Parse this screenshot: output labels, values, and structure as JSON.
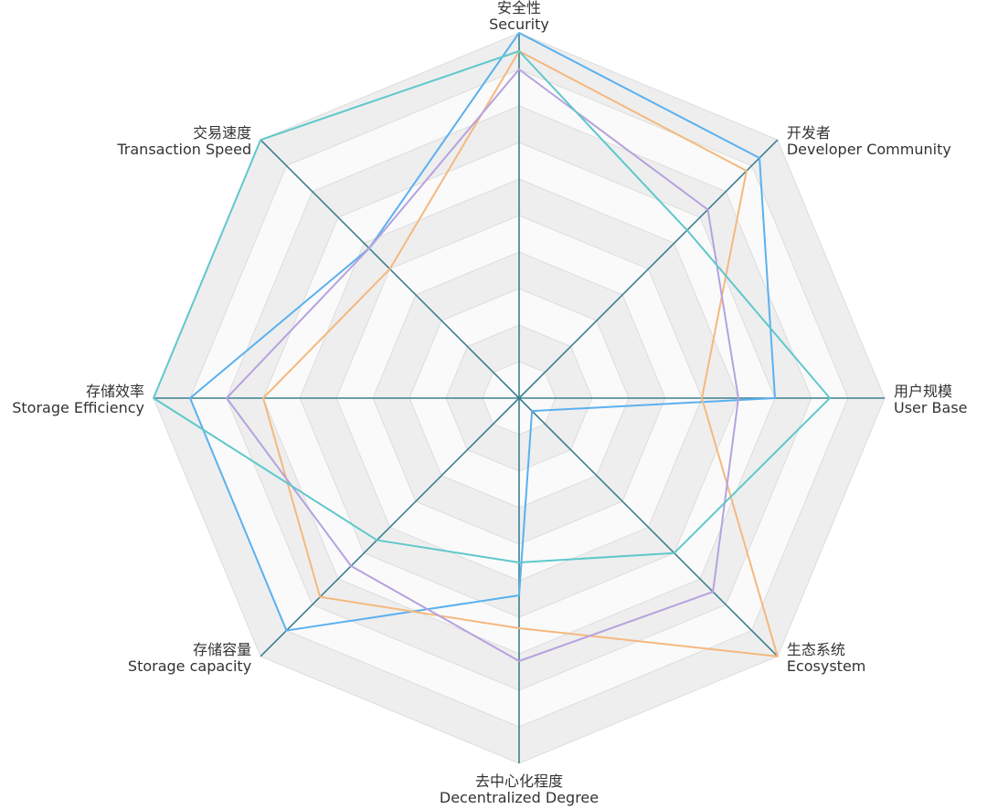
{
  "chart_data": {
    "type": "radar",
    "title": "",
    "axes": [
      {
        "zh": "安全性",
        "en": "Security"
      },
      {
        "zh": "开发者",
        "en": "Developer Community"
      },
      {
        "zh": "用户规模",
        "en": "User Base"
      },
      {
        "zh": "生态系统",
        "en": "Ecosystem"
      },
      {
        "zh": "去中心化程度",
        "en": "Decentralized Degree"
      },
      {
        "zh": "存储容量",
        "en": "Storage capacity"
      },
      {
        "zh": "存储效率",
        "en": "Storage Efficiency"
      },
      {
        "zh": "交易速度",
        "en": "Transaction Speed"
      }
    ],
    "max": 10,
    "split_number": 10,
    "grid": "alternating bands",
    "series": [
      {
        "color": "#5ab1ef",
        "values": [
          10,
          9.3,
          7,
          0.5,
          5.4,
          9.0,
          9.0,
          5.8
        ]
      },
      {
        "color": "#f5b87e",
        "values": [
          9.5,
          8.8,
          5,
          10,
          6.3,
          7.7,
          7,
          5
        ]
      },
      {
        "color": "#b6a2de",
        "values": [
          9.0,
          7.3,
          6,
          7.5,
          7.2,
          6.5,
          8,
          5.8
        ]
      },
      {
        "color": "#5fc8cb",
        "values": [
          9.5,
          6.5,
          8.5,
          6.0,
          4.5,
          5.5,
          10,
          10
        ]
      }
    ]
  }
}
